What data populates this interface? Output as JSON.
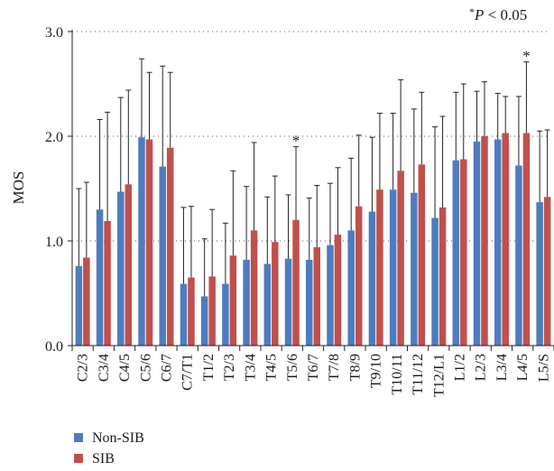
{
  "chart_data": {
    "type": "bar",
    "annotation": {
      "star": "*",
      "p": "P",
      "rest": " < 0.05"
    },
    "ylabel": "MOS",
    "ylim": [
      0,
      3
    ],
    "yticks": [
      "0.0",
      "1.0",
      "2.0",
      "3.0"
    ],
    "ytick_values": [
      0,
      1,
      2,
      3
    ],
    "grid": true,
    "legend_position": "bottom-left",
    "significance_marker": "*",
    "significant_categories": [
      "T5/6",
      "L4/5"
    ],
    "categories": [
      "C2/3",
      "C3/4",
      "C4/5",
      "C5/6",
      "C6/7",
      "C7/T1",
      "T1/2",
      "T2/3",
      "T3/4",
      "T4/5",
      "T5/6",
      "T6/7",
      "T7/8",
      "T8/9",
      "T9/10",
      "T10/11",
      "T11/12",
      "T12/L1",
      "L1/2",
      "L2/3",
      "L3/4",
      "L4/5",
      "L5/S"
    ],
    "series": [
      {
        "name": "Non-SIB",
        "color": "#4F7CBF",
        "values": [
          0.76,
          1.3,
          1.47,
          1.99,
          1.71,
          0.59,
          0.47,
          0.59,
          0.82,
          0.78,
          0.83,
          0.82,
          0.96,
          1.1,
          1.28,
          1.49,
          1.46,
          1.22,
          1.77,
          1.95,
          1.97,
          1.72,
          1.37
        ],
        "err_upper": [
          1.5,
          2.16,
          2.37,
          2.74,
          2.67,
          1.32,
          1.02,
          1.17,
          1.52,
          1.42,
          1.44,
          1.41,
          1.55,
          1.79,
          1.99,
          2.22,
          2.26,
          2.09,
          2.42,
          2.43,
          2.41,
          2.38,
          2.05
        ]
      },
      {
        "name": "SIB",
        "color": "#C0504D",
        "values": [
          0.84,
          1.19,
          1.54,
          1.97,
          1.89,
          0.65,
          0.66,
          0.86,
          1.1,
          0.99,
          1.2,
          0.94,
          1.06,
          1.33,
          1.49,
          1.67,
          1.73,
          1.32,
          1.78,
          2.0,
          2.03,
          2.03,
          1.42
        ],
        "err_upper": [
          1.56,
          2.23,
          2.44,
          2.61,
          2.61,
          1.33,
          1.3,
          1.67,
          1.94,
          1.62,
          1.9,
          1.53,
          1.7,
          2.01,
          2.22,
          2.54,
          2.42,
          2.19,
          2.5,
          2.52,
          2.38,
          2.71,
          2.06
        ]
      }
    ]
  }
}
